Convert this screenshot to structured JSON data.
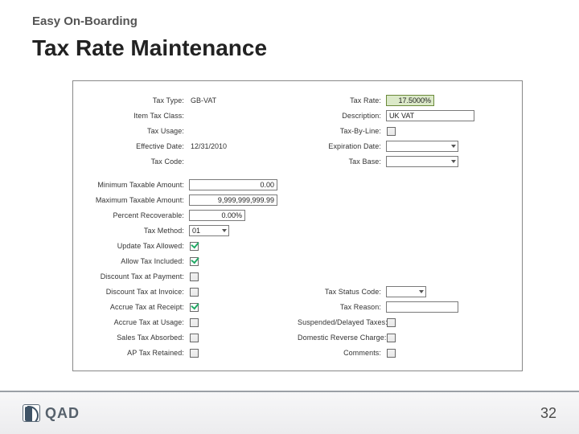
{
  "slide": {
    "subtitle": "Easy On-Boarding",
    "title": "Tax Rate Maintenance",
    "page_number": "32"
  },
  "logo": {
    "text": "QAD"
  },
  "form": {
    "taxType": {
      "label": "Tax Type:",
      "value": "GB-VAT"
    },
    "taxRate": {
      "label": "Tax Rate:",
      "value": "17.5000%"
    },
    "itemTaxClass": {
      "label": "Item Tax Class:",
      "value": ""
    },
    "description": {
      "label": "Description:",
      "value": "UK VAT"
    },
    "taxUsage": {
      "label": "Tax Usage:",
      "value": ""
    },
    "taxByLine": {
      "label": "Tax-By-Line:"
    },
    "effectiveDate": {
      "label": "Effective Date:",
      "value": "12/31/2010"
    },
    "expirationDate": {
      "label": "Expiration Date:",
      "value": ""
    },
    "taxCode": {
      "label": "Tax Code:",
      "value": ""
    },
    "taxBase": {
      "label": "Tax Base:",
      "value": ""
    },
    "minTaxable": {
      "label": "Minimum Taxable Amount:",
      "value": "0.00"
    },
    "maxTaxable": {
      "label": "Maximum Taxable Amount:",
      "value": "9,999,999,999.99"
    },
    "pctRecover": {
      "label": "Percent Recoverable:",
      "value": "0.00%"
    },
    "taxMethod": {
      "label": "Tax Method:",
      "value": "01"
    },
    "updateTaxAllowed": {
      "label": "Update Tax Allowed:",
      "checked": true
    },
    "allowTaxIncluded": {
      "label": "Allow Tax Included:",
      "checked": true
    },
    "discAtPayment": {
      "label": "Discount Tax at Payment:"
    },
    "discAtInvoice": {
      "label": "Discount Tax at Invoice:"
    },
    "accrueReceipt": {
      "label": "Accrue Tax at Receipt:",
      "checked": true
    },
    "accrueUsage": {
      "label": "Accrue Tax at Usage:"
    },
    "salesTaxAbsorbed": {
      "label": "Sales Tax Absorbed:"
    },
    "apTaxRetained": {
      "label": "AP Tax Retained:"
    },
    "taxStatusCode": {
      "label": "Tax Status Code:",
      "value": ""
    },
    "taxReason": {
      "label": "Tax Reason:",
      "value": ""
    },
    "suspended": {
      "label": "Suspended/Delayed Taxes:"
    },
    "domesticRC": {
      "label": "Domestic Reverse Charge:"
    },
    "comments": {
      "label": "Comments:"
    }
  }
}
